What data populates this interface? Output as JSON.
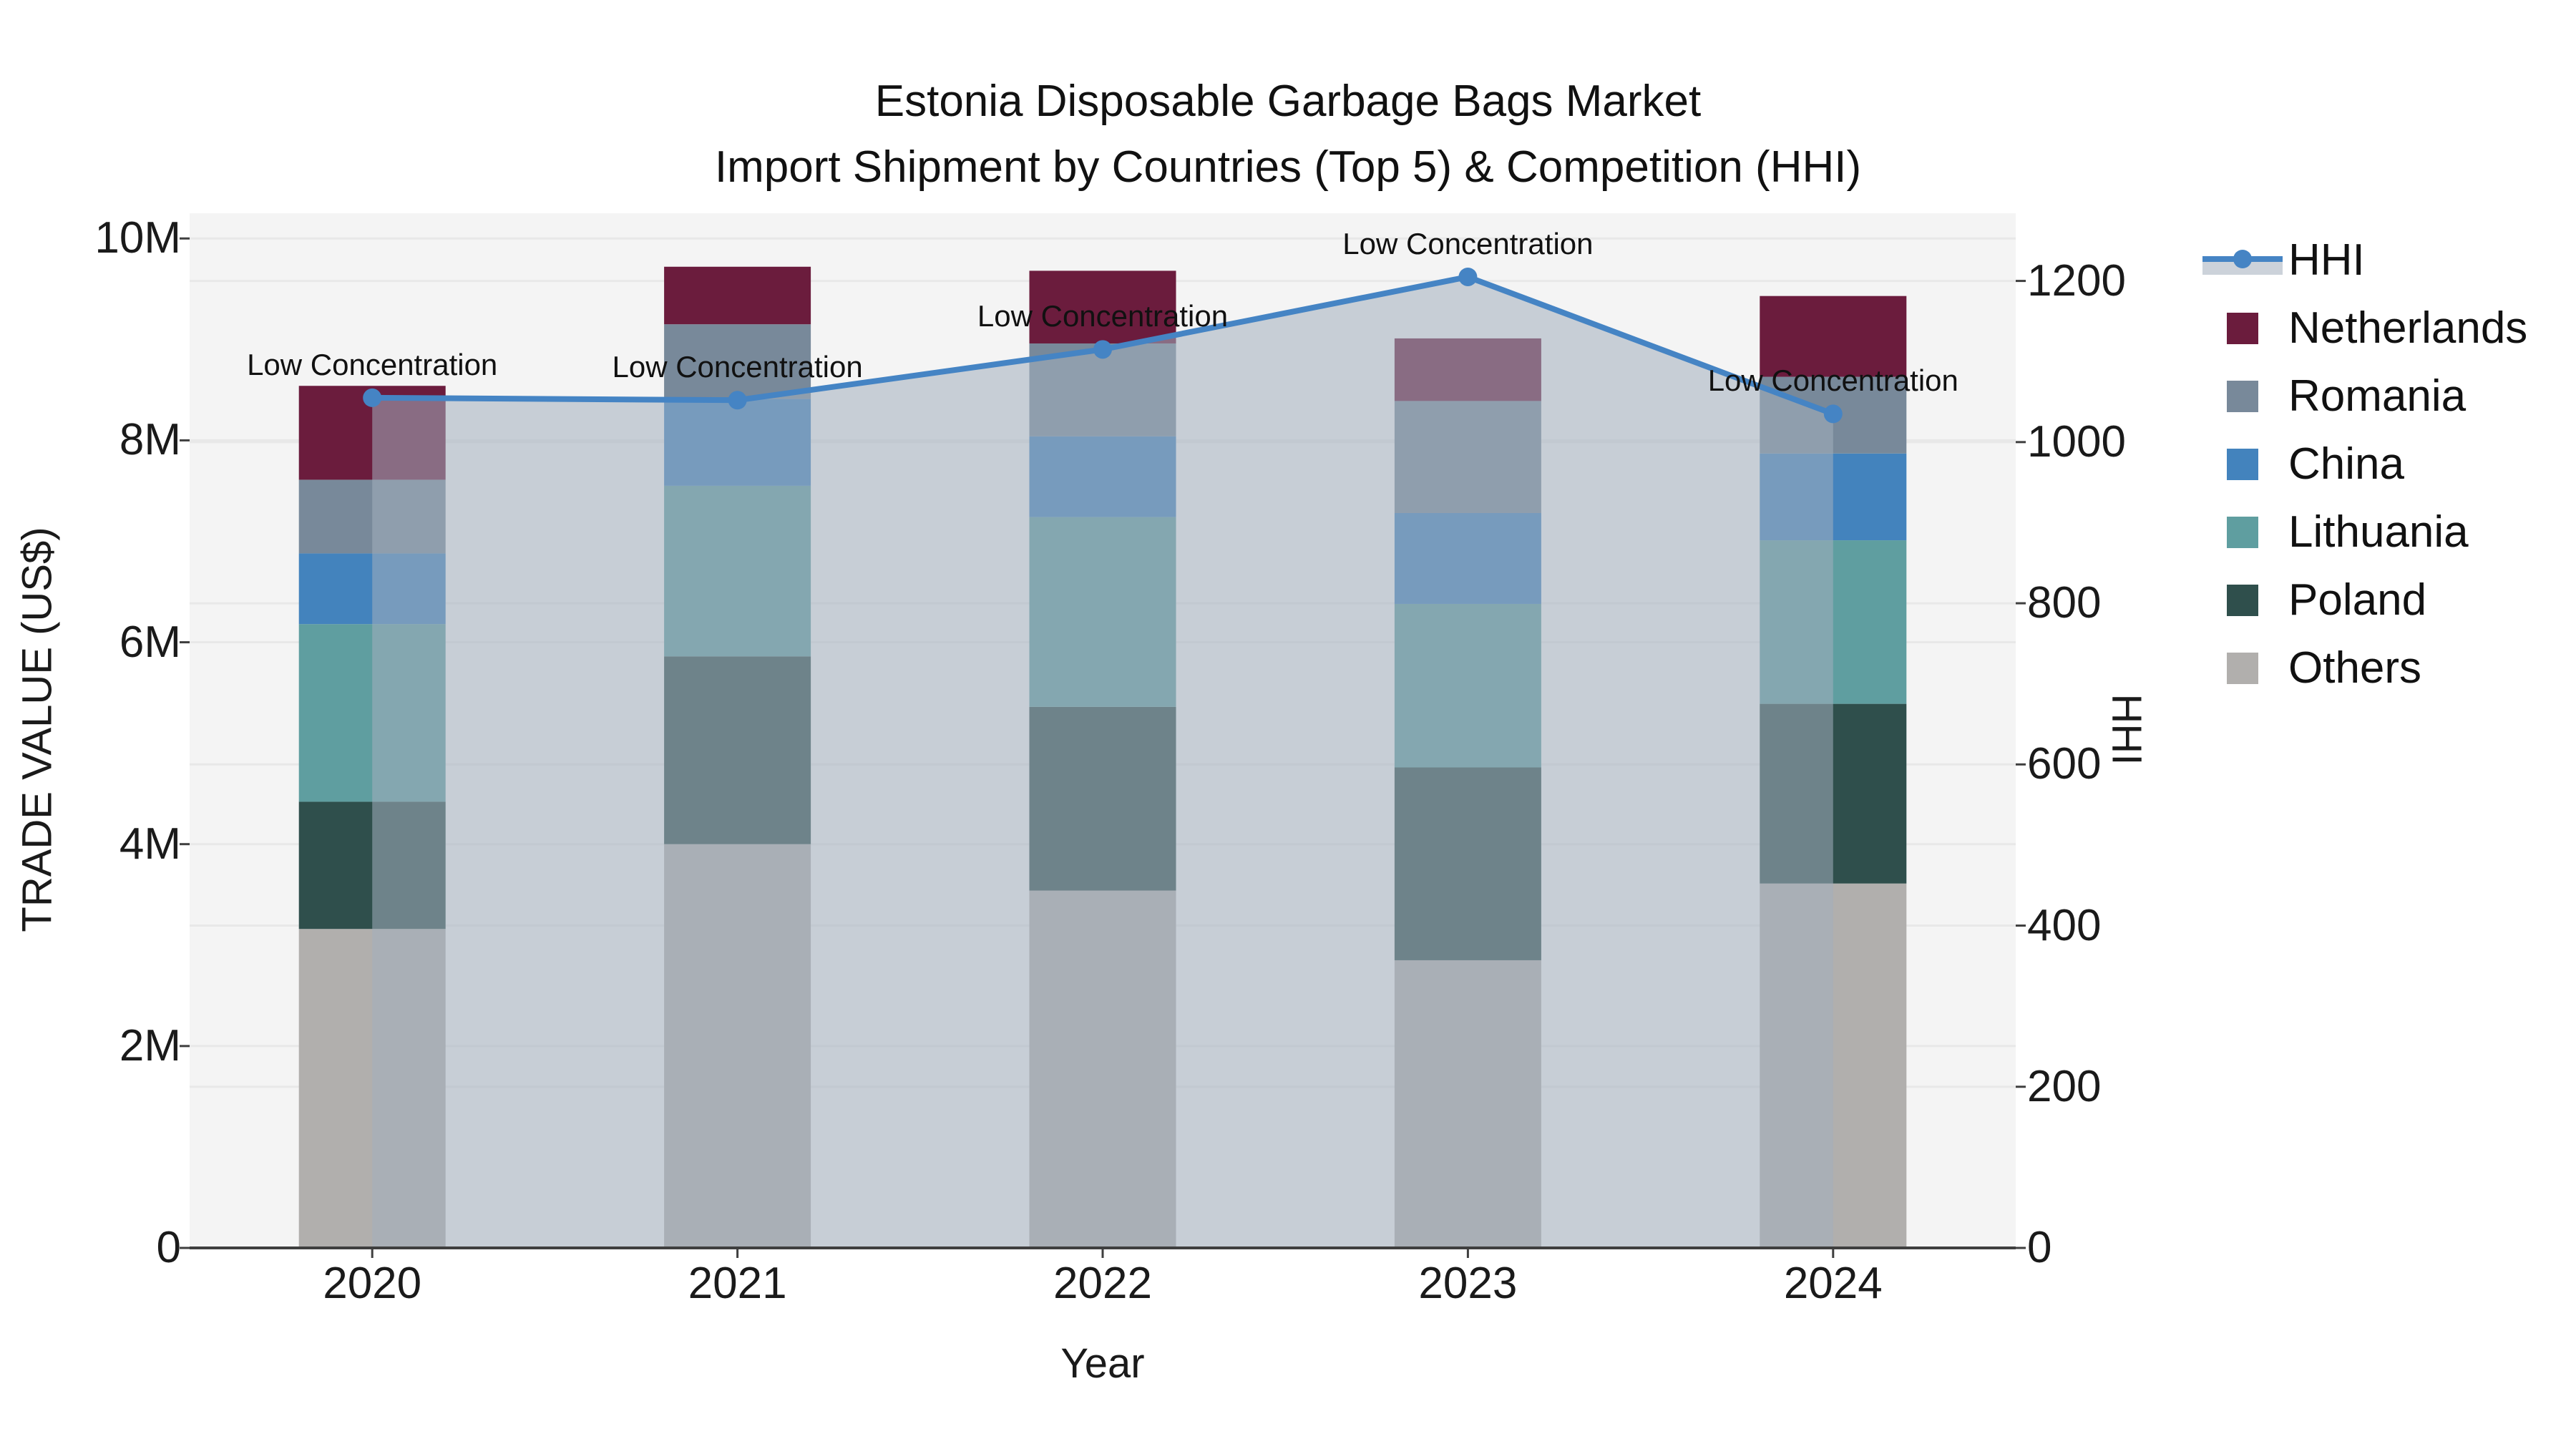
{
  "title": {
    "line1": "Estonia Disposable Garbage Bags Market",
    "line2": "Import Shipment by Countries (Top 5) & Competition (HHI)"
  },
  "axes": {
    "x_label": "Year",
    "y_left_label": "TRADE VALUE (US$)",
    "y_right_label": "HHI",
    "y_left_ticks": [
      {
        "label": "0",
        "value": 0
      },
      {
        "label": "2M",
        "value": 2
      },
      {
        "label": "4M",
        "value": 4
      },
      {
        "label": "6M",
        "value": 6
      },
      {
        "label": "8M",
        "value": 8
      },
      {
        "label": "10M",
        "value": 10
      }
    ],
    "y_right_ticks": [
      {
        "label": "0",
        "value": 0
      },
      {
        "label": "200",
        "value": 200
      },
      {
        "label": "400",
        "value": 400
      },
      {
        "label": "600",
        "value": 600
      },
      {
        "label": "800",
        "value": 800
      },
      {
        "label": "1000",
        "value": 1000
      },
      {
        "label": "1200",
        "value": 1200
      }
    ]
  },
  "chart_data": {
    "type": "combo: stacked-bar + line",
    "categories": [
      "2020",
      "2021",
      "2022",
      "2023",
      "2024"
    ],
    "value_unit": "trade value, millions US$",
    "stack_order_bottom_to_top": [
      "Others",
      "Poland",
      "Lithuania",
      "China",
      "Romania",
      "Netherlands"
    ],
    "series": [
      {
        "name": "Others",
        "color": "#b1afad",
        "values": [
          3.16,
          4.0,
          3.54,
          2.85,
          3.61
        ]
      },
      {
        "name": "Poland",
        "color": "#2f4f4c",
        "values": [
          1.26,
          1.86,
          1.82,
          1.91,
          1.78
        ]
      },
      {
        "name": "Lithuania",
        "color": "#5f9ea0",
        "values": [
          1.76,
          1.69,
          1.88,
          1.62,
          1.62
        ]
      },
      {
        "name": "China",
        "color": "#4383bd",
        "values": [
          0.7,
          0.86,
          0.8,
          0.9,
          0.86
        ]
      },
      {
        "name": "Romania",
        "color": "#78899a",
        "values": [
          0.73,
          0.74,
          0.92,
          1.11,
          0.76
        ]
      },
      {
        "name": "Netherlands",
        "color": "#6b1c3d",
        "values": [
          0.93,
          0.57,
          0.72,
          0.62,
          0.8
        ]
      }
    ],
    "bar_totals_millions": [
      8.54,
      9.72,
      9.68,
      9.01,
      9.43
    ],
    "line_series": {
      "name": "HHI",
      "color": "#4584c4",
      "area_fill_color": "rgba(163,174,189,0.55)",
      "values": [
        1055,
        1052,
        1115,
        1205,
        1035
      ]
    },
    "annotations": [
      "Low Concentration",
      "Low Concentration",
      "Low Concentration",
      "Low Concentration",
      "Low Concentration"
    ],
    "ylim_left_millions": [
      0,
      10.25
    ],
    "ylim_right": [
      0,
      1284
    ],
    "grid": true,
    "legend_position": "right-outside",
    "plot_background": "#f4f4f4",
    "gridline_color": "#e8e8e8",
    "axis_line_color": "#3f3f3f"
  },
  "legend": {
    "items": [
      {
        "label": "HHI",
        "type": "line"
      },
      {
        "label": "Netherlands",
        "type": "swatch"
      },
      {
        "label": "Romania",
        "type": "swatch"
      },
      {
        "label": "China",
        "type": "swatch"
      },
      {
        "label": "Lithuania",
        "type": "swatch"
      },
      {
        "label": "Poland",
        "type": "swatch"
      },
      {
        "label": "Others",
        "type": "swatch"
      }
    ]
  }
}
